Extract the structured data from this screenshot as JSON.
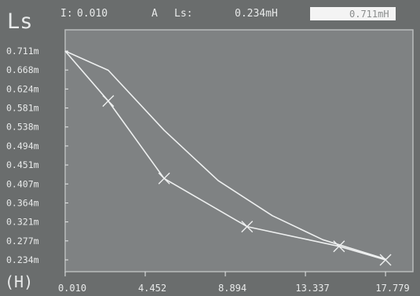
{
  "header": {
    "mode_symbol": "Ls",
    "current_label": "I:",
    "current_value": "0.010",
    "current_unit": "A",
    "param_label": "Ls:",
    "param_value": "0.234mH",
    "cursor_value": "0.711mH"
  },
  "chart_data": {
    "type": "line",
    "y_unit_label": "(H)",
    "y_tick_labels": [
      "0.711m",
      "0.668m",
      "0.624m",
      "0.581m",
      "0.538m",
      "0.494m",
      "0.451m",
      "0.407m",
      "0.364m",
      "0.321m",
      "0.277m",
      "0.234m"
    ],
    "x_tick_labels": [
      "0.010",
      "4.452",
      "8.894",
      "13.337",
      "17.779"
    ],
    "ylim": [
      0.234,
      0.711
    ],
    "xlim": [
      0.01,
      19.3
    ],
    "grid": false,
    "series": [
      {
        "markers": "none",
        "x": [
          0.01,
          2.4,
          5.5,
          8.5,
          11.5,
          14.3,
          17.779
        ],
        "y": [
          0.711,
          0.667,
          0.53,
          0.415,
          0.335,
          0.28,
          0.236
        ]
      },
      {
        "markers": "x",
        "x": [
          0.01,
          2.4,
          5.5,
          10.1,
          15.2,
          17.779
        ],
        "y": [
          0.711,
          0.597,
          0.42,
          0.31,
          0.265,
          0.234
        ],
        "marker_x": [
          2.4,
          5.5,
          10.1,
          15.2,
          17.779
        ],
        "marker_y": [
          0.597,
          0.42,
          0.31,
          0.265,
          0.234
        ]
      }
    ]
  },
  "style": {
    "background": "#6a6d6d",
    "plot_background": "#7f8283",
    "trace": "#eef0f0",
    "text": "#e8eaea",
    "cursor_box": "#f4f4f4"
  }
}
